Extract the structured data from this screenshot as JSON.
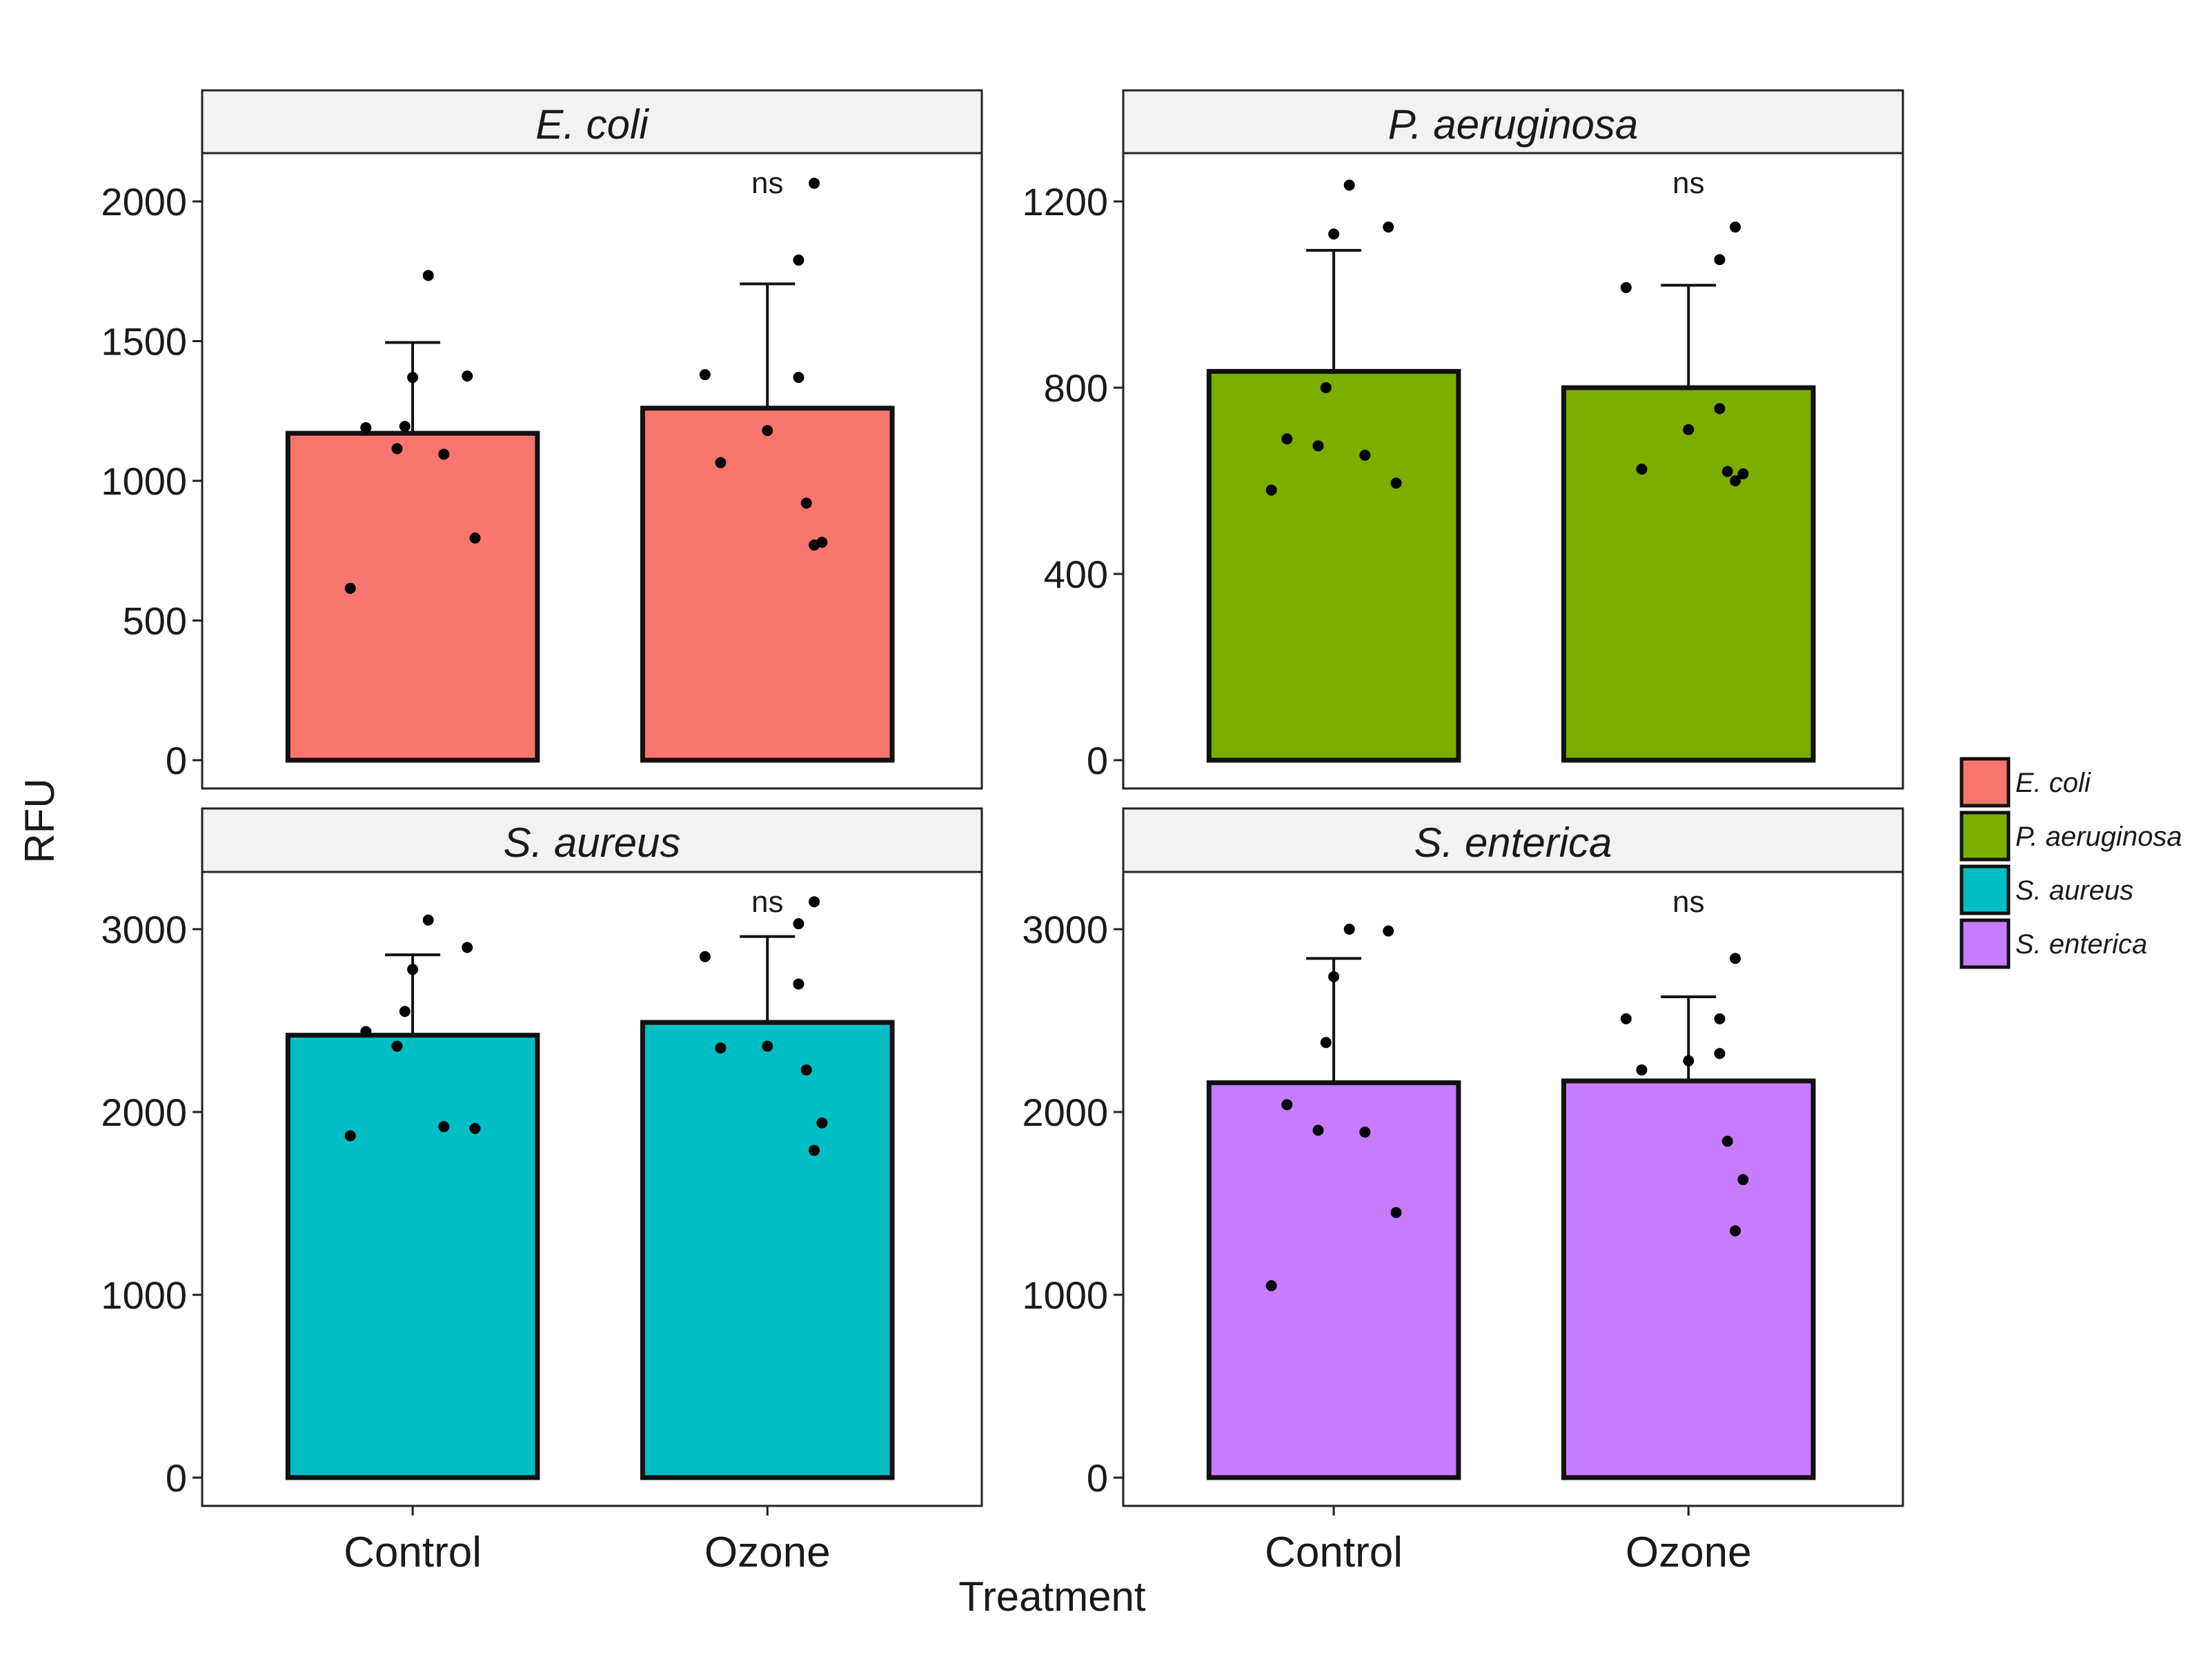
{
  "chart_data": {
    "type": "bar",
    "title": "",
    "xlabel": "Treatment",
    "ylabel": "RFU",
    "categories": [
      "Control",
      "Ozone"
    ],
    "legend": {
      "position": "right",
      "entries": [
        {
          "label": "E. coli",
          "color": "#F8766D"
        },
        {
          "label": "P. aeruginosa",
          "color": "#7CAE00"
        },
        {
          "label": "S. aureus",
          "color": "#00BFC4"
        },
        {
          "label": "S. enterica",
          "color": "#C77CFF"
        }
      ]
    },
    "facets": [
      {
        "name": "E. coli",
        "color": "#F8766D",
        "ylim": [
          0,
          2150
        ],
        "yticks": [
          0,
          500,
          1000,
          1500,
          2000
        ],
        "annotation": "ns",
        "means": [
          1170,
          1260
        ],
        "error_upper": [
          1495,
          1705
        ],
        "points": [
          [
            615,
            795,
            1095,
            1115,
            1190,
            1195,
            1370,
            1375,
            1735
          ],
          [
            770,
            780,
            920,
            1065,
            1180,
            1370,
            1380,
            1790,
            2065
          ]
        ]
      },
      {
        "name": "P. aeruginosa",
        "color": "#7CAE00",
        "ylim": [
          0,
          1300
        ],
        "yticks": [
          0,
          400,
          800,
          1200
        ],
        "annotation": "ns",
        "means": [
          835,
          800
        ],
        "error_upper": [
          1095,
          1020
        ],
        "points": [
          [
            580,
            595,
            655,
            675,
            690,
            800,
            1130,
            1145,
            1235
          ],
          [
            600,
            615,
            620,
            625,
            710,
            755,
            1015,
            1075,
            1145
          ]
        ]
      },
      {
        "name": "S. aureus",
        "color": "#00BFC4",
        "ylim": [
          0,
          3400
        ],
        "yticks": [
          0,
          1000,
          2000,
          3000
        ],
        "annotation": "ns",
        "means": [
          2420,
          2490
        ],
        "error_upper": [
          2860,
          2960
        ],
        "points": [
          [
            1870,
            1910,
            1920,
            2360,
            2440,
            2550,
            2780,
            2900,
            3050
          ],
          [
            1790,
            1940,
            2230,
            2350,
            2360,
            2700,
            2850,
            3030,
            3150
          ]
        ]
      },
      {
        "name": "S. enterica",
        "color": "#C77CFF",
        "ylim": [
          0,
          3350
        ],
        "yticks": [
          0,
          1000,
          2000,
          3000
        ],
        "annotation": "ns",
        "means": [
          2160,
          2170
        ],
        "error_upper": [
          2840,
          2630
        ],
        "points": [
          [
            1050,
            1450,
            1890,
            1900,
            2040,
            2380,
            2740,
            2990,
            3000
          ],
          [
            1350,
            1630,
            1840,
            2230,
            2280,
            2320,
            2510,
            2510,
            2840
          ]
        ]
      }
    ]
  }
}
